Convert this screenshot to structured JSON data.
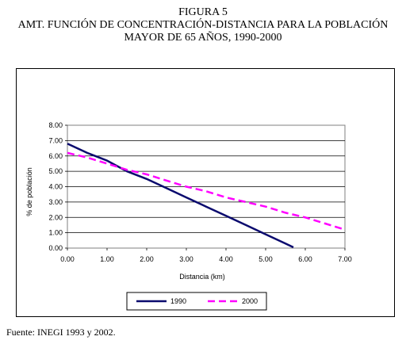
{
  "header": {
    "line1": "FIGURA 5",
    "line2": "AMT. FUNCIÓN DE CONCENTRACIÓN-DISTANCIA PARA LA POBLACIÓN",
    "line3": "MAYOR DE 65 AÑOS, 1990-2000"
  },
  "source": "Fuente: INEGI 1993 y 2002.",
  "chart_data": {
    "type": "line",
    "title": "AMT. FUNCIÓN DE CONCENTRACIÓN-DISTANCIA PARA LA POBLACIÓN MAYOR DE 65 AÑOS, 1990-2000",
    "xlabel": "Distancia (km)",
    "ylabel": "% de población",
    "xlim": [
      0,
      7
    ],
    "ylim": [
      0,
      8
    ],
    "x_ticks": [
      "0.00",
      "1.00",
      "2.00",
      "3.00",
      "4.00",
      "5.00",
      "6.00",
      "7.00"
    ],
    "y_ticks": [
      "0.00",
      "1.00",
      "2.00",
      "3.00",
      "4.00",
      "5.00",
      "6.00",
      "7.00",
      "8.00"
    ],
    "grid": "horizontal",
    "legend": "bottom",
    "series": [
      {
        "name": "1990",
        "color": "#0a0a6e",
        "style": "solid",
        "x": [
          0,
          0.5,
          1.0,
          1.5,
          2.0,
          2.5,
          3.0,
          3.5,
          4.0,
          4.5,
          5.0,
          5.5,
          5.7
        ],
        "y": [
          6.8,
          6.2,
          5.7,
          5.0,
          4.5,
          3.9,
          3.3,
          2.7,
          2.1,
          1.5,
          0.9,
          0.3,
          0.05
        ]
      },
      {
        "name": "2000",
        "color": "#ff00ff",
        "style": "dashed",
        "x": [
          0,
          0.5,
          1.0,
          1.5,
          2.0,
          2.5,
          3.0,
          3.5,
          4.0,
          4.5,
          5.0,
          5.5,
          6.0,
          6.5,
          7.0
        ],
        "y": [
          6.2,
          5.9,
          5.5,
          5.1,
          4.8,
          4.4,
          4.0,
          3.7,
          3.3,
          3.0,
          2.7,
          2.3,
          2.0,
          1.6,
          1.2
        ]
      }
    ]
  }
}
